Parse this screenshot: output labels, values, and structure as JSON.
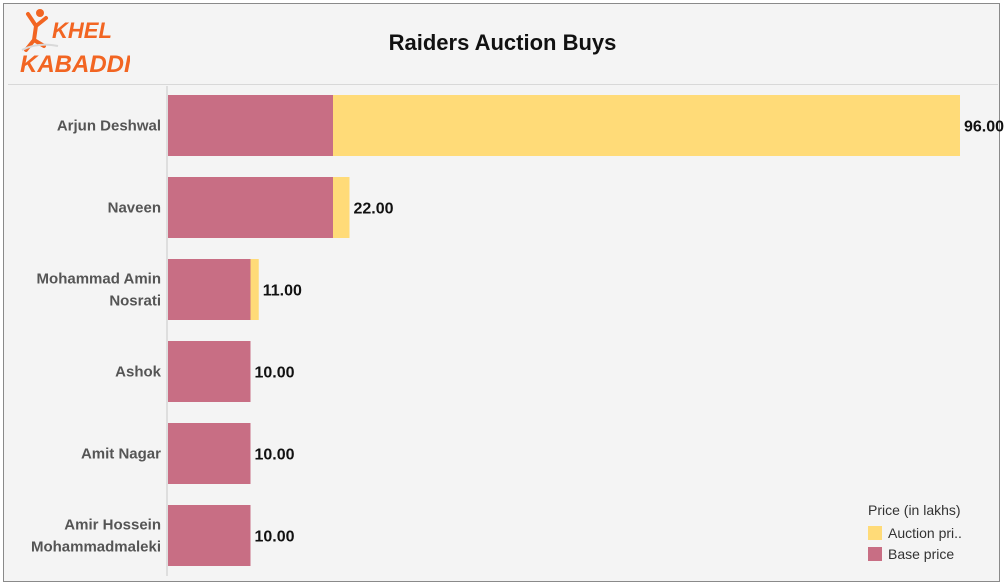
{
  "header": {
    "title": "Raiders Auction Buys",
    "logo_text": [
      "KHEL",
      "KABADDI"
    ]
  },
  "colors": {
    "auction": "#FFDB78",
    "base": "#C86E84",
    "logo_orange": "#F26522"
  },
  "chart_data": {
    "type": "bar",
    "orientation": "horizontal",
    "stacked": true,
    "title": "Raiders Auction Buys",
    "categories": [
      [
        "Arjun Deshwal"
      ],
      [
        "Naveen"
      ],
      [
        "Mohammad Amin",
        "Nosrati"
      ],
      [
        "Ashok"
      ],
      [
        "Amit Nagar"
      ],
      [
        "Amir Hossein",
        "Mohammadmaleki"
      ]
    ],
    "series": [
      {
        "name": "Base price",
        "color": "#C86E84",
        "values": [
          20,
          20,
          10,
          10,
          10,
          10
        ]
      },
      {
        "name": "Auction pri..",
        "color": "#FFDB78",
        "values": [
          76,
          2,
          1,
          0,
          0,
          0
        ]
      }
    ],
    "totals": [
      "96.00",
      "22.00",
      "11.00",
      "10.00",
      "10.00",
      "10.00"
    ],
    "xlim": [
      0,
      100
    ],
    "grid": false,
    "legend": {
      "title": "Price (in lakhs)",
      "position": "bottom-right",
      "items": [
        {
          "label": "Auction pri..",
          "color": "#FFDB78"
        },
        {
          "label": "Base price",
          "color": "#C86E84"
        }
      ]
    }
  }
}
